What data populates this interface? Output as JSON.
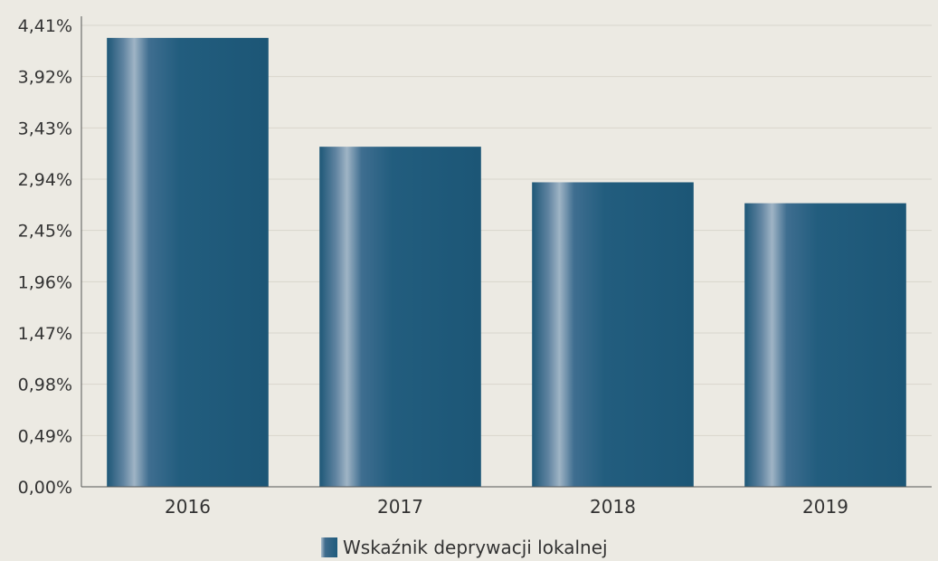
{
  "chart_data": {
    "type": "bar",
    "categories": [
      "2016",
      "2017",
      "2018",
      "2019"
    ],
    "series": [
      {
        "name": "Wskaźnik deprywacji lokalnej",
        "values": [
          4.29,
          3.25,
          2.91,
          2.71
        ]
      }
    ],
    "y_ticks": [
      "0,00%",
      "0,49%",
      "0,98%",
      "1,47%",
      "1,96%",
      "2,45%",
      "2,94%",
      "3,43%",
      "3,92%",
      "4,41%"
    ],
    "ylim": [
      0,
      4.41
    ],
    "grid": true,
    "legend_position": "bottom",
    "colors": {
      "bar": "#1f5b7c",
      "bar_highlight": "#a9bccb",
      "axis": "#555555",
      "grid": "#d9d6cc"
    }
  }
}
